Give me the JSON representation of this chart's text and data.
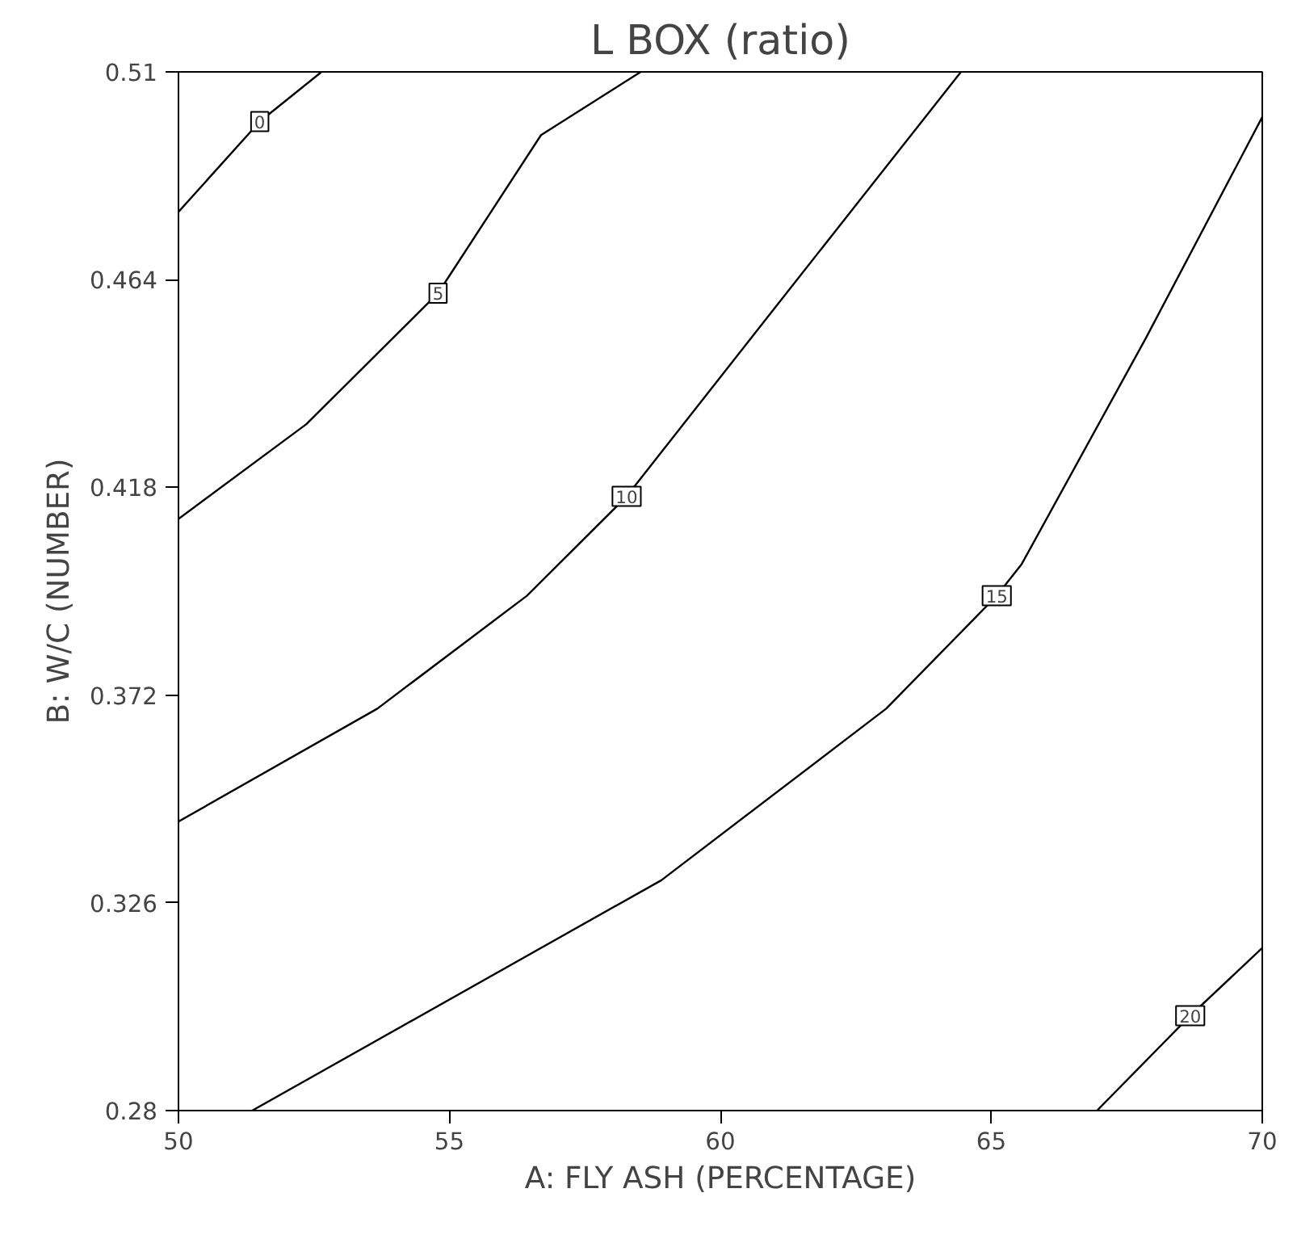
{
  "chart_data": {
    "type": "line",
    "title": "L BOX (ratio)",
    "xlabel": "A: FLY ASH (PERCENTAGE)",
    "ylabel": "B: W/C (NUMBER)",
    "xlim": [
      50,
      70
    ],
    "xticks": [
      50,
      55,
      60,
      65,
      70
    ],
    "ylim": [
      0.28,
      0.51
    ],
    "yticks": [
      0.28,
      0.326,
      0.372,
      0.418,
      0.464,
      0.51
    ],
    "grid": false,
    "marker": "none",
    "line_style": "solid",
    "series": [
      {
        "name": "0",
        "color": "#000000",
        "x": [
          50,
          51.5,
          52.64
        ],
        "values": [
          0.479,
          0.499,
          0.51
        ]
      },
      {
        "name": "5",
        "color": "#000000",
        "x": [
          50,
          52.36,
          54.79,
          56.69,
          58.53
        ],
        "values": [
          0.411,
          0.432,
          0.461,
          0.496,
          0.51
        ]
      },
      {
        "name": "10",
        "color": "#000000",
        "x": [
          50,
          53.67,
          56.43,
          58.27,
          60.89,
          64.44
        ],
        "values": [
          0.344,
          0.369,
          0.394,
          0.416,
          0.456,
          0.51
        ]
      },
      {
        "name": "15",
        "color": "#000000",
        "x": [
          51.36,
          58.91,
          63.06,
          65.1,
          65.56,
          67.85,
          70
        ],
        "values": [
          0.28,
          0.331,
          0.369,
          0.394,
          0.401,
          0.451,
          0.5
        ]
      },
      {
        "name": "20",
        "color": "#000000",
        "x": [
          66.95,
          68.67,
          70
        ],
        "values": [
          0.28,
          0.301,
          0.316
        ]
      }
    ]
  }
}
